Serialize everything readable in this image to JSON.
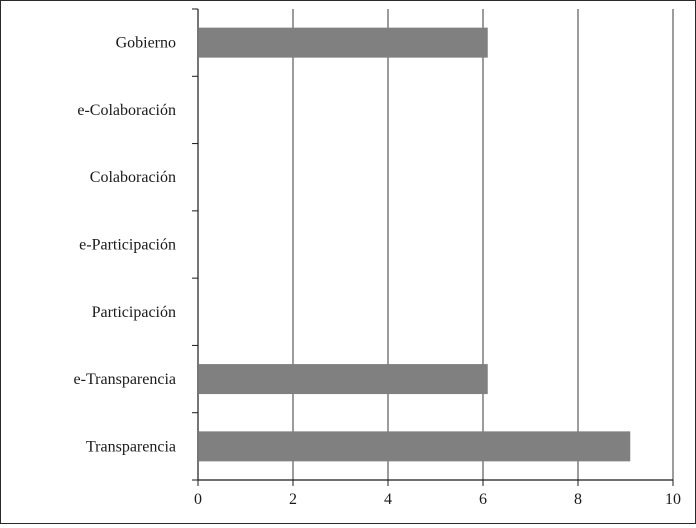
{
  "chart_data": {
    "type": "bar",
    "orientation": "horizontal",
    "categories": [
      "Gobierno",
      "e-Colaboración",
      "Colaboración",
      "e-Participación",
      "Participación",
      "e-Transparencia",
      "Transparencia"
    ],
    "values": [
      6.1,
      0,
      0,
      0,
      0,
      6.1,
      9.1
    ],
    "xlim": [
      0,
      10
    ],
    "xticks": [
      0,
      2,
      4,
      6,
      8,
      10
    ],
    "xtick_labels": [
      "0",
      "2",
      "4",
      "6",
      "8",
      "10"
    ],
    "grid": "vertical",
    "bar_color": "#808080",
    "title": "",
    "xlabel": "",
    "ylabel": ""
  }
}
